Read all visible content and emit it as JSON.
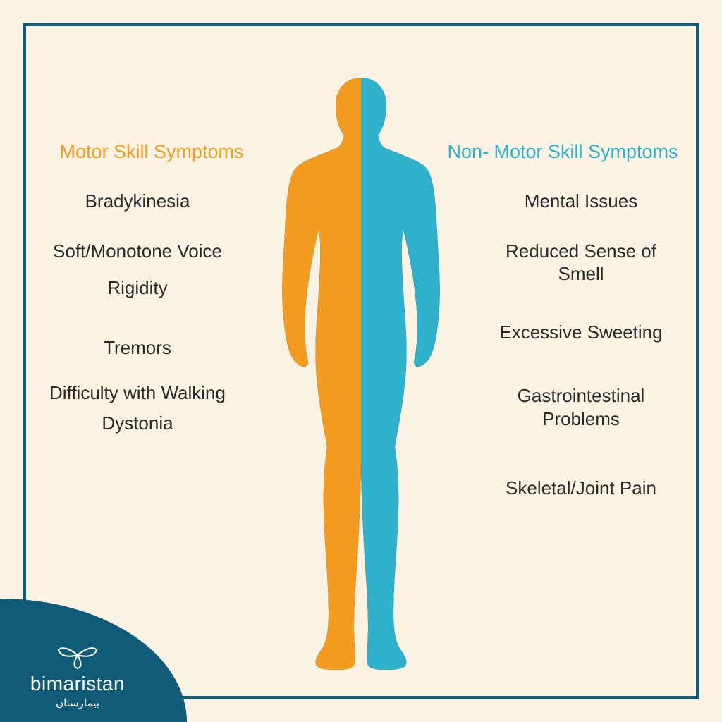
{
  "colors": {
    "background": "#faf2e3",
    "border": "#0f5b78",
    "motor_accent": "#f29b1e",
    "nonmotor_accent": "#2fb1cc",
    "text": "#2a2a2a",
    "logo_bg": "#0f5b78",
    "logo_text": "#ffffff"
  },
  "figure": {
    "left_color": "#f29b1e",
    "right_color": "#2fb1cc"
  },
  "left_column": {
    "header": "Motor Skill Symptoms",
    "items": [
      "Bradykinesia",
      "Soft/Monotone Voice",
      "Rigidity",
      "Tremors",
      "Difficulty with Walking",
      "Dystonia"
    ]
  },
  "right_column": {
    "header": "Non- Motor Skill Symptoms",
    "items": [
      "Mental Issues",
      "Reduced Sense of Smell",
      "Excessive Sweeting",
      "Gastrointestinal Problems",
      "Skeletal/Joint Pain"
    ]
  },
  "logo": {
    "brand": "bimaristan",
    "arabic": "بيمارستان"
  },
  "layout": {
    "left_spacing": [
      38,
      20,
      52,
      32,
      10,
      44
    ],
    "right_spacing": [
      38,
      50,
      58,
      66,
      42
    ]
  }
}
